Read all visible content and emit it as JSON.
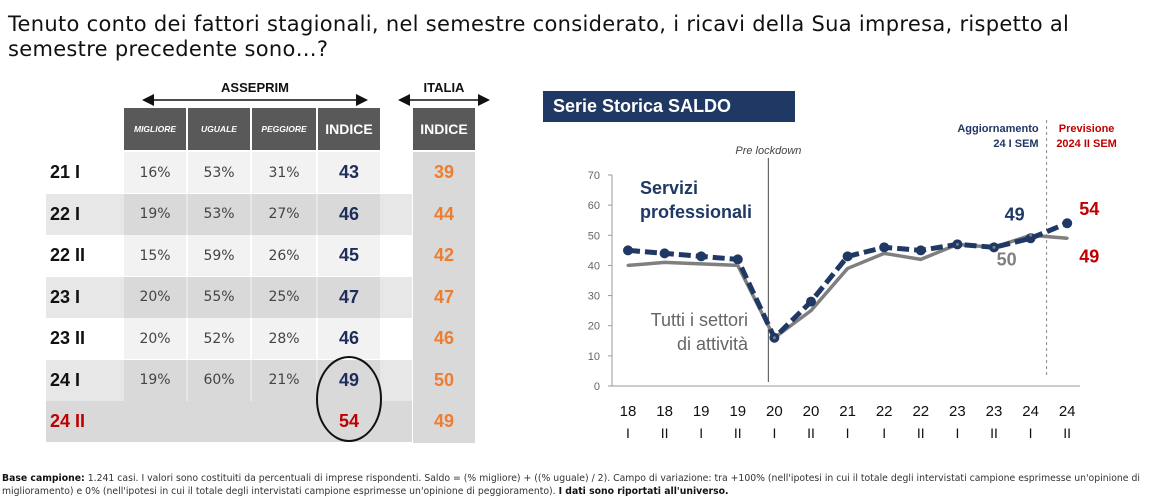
{
  "question": "Tenuto conto dei fattori stagionali, nel semestre considerato, i ricavi della Sua impresa, rispetto al semestre precedente sono…?",
  "table": {
    "group_asseprim": "ASSEPRIM",
    "group_italia": "ITALIA",
    "columns": [
      "MIGLIORE",
      "UGUALE",
      "PEGGIORE",
      "INDICE"
    ],
    "italia_column": "INDICE",
    "rows": [
      {
        "label": "21 I",
        "migliore": "16%",
        "uguale": "53%",
        "peggiore": "31%",
        "indice": "43",
        "italia": "39"
      },
      {
        "label": "22 I",
        "migliore": "19%",
        "uguale": "53%",
        "peggiore": "27%",
        "indice": "46",
        "italia": "44"
      },
      {
        "label": "22 II",
        "migliore": "15%",
        "uguale": "59%",
        "peggiore": "26%",
        "indice": "45",
        "italia": "42"
      },
      {
        "label": "23 I",
        "migliore": "20%",
        "uguale": "55%",
        "peggiore": "25%",
        "indice": "47",
        "italia": "47"
      },
      {
        "label": "23 II",
        "migliore": "20%",
        "uguale": "52%",
        "peggiore": "28%",
        "indice": "46",
        "italia": "46"
      },
      {
        "label": "24 I",
        "migliore": "19%",
        "uguale": "60%",
        "peggiore": "21%",
        "indice": "49",
        "italia": "50"
      },
      {
        "label": "24 II",
        "migliore": "",
        "uguale": "",
        "peggiore": "",
        "indice": "54",
        "italia": "49"
      }
    ],
    "colors": {
      "header_bg": "#595959",
      "band_dark": "#d9d9d9",
      "band_light": "#f2f2f2",
      "indice": "#1f2d5a",
      "italia": "#ed7d31",
      "forecast": "#c00000"
    }
  },
  "chart_title": "Serie Storica SALDO",
  "chart_data": {
    "type": "line",
    "x": [
      "18 I",
      "18 II",
      "19 I",
      "19 II",
      "20 I",
      "20 II",
      "21 I",
      "22 I",
      "22 II",
      "23 I",
      "23 II",
      "24 I",
      "24 II"
    ],
    "x_top": [
      "18",
      "18",
      "19",
      "19",
      "20",
      "20",
      "21",
      "22",
      "22",
      "23",
      "23",
      "24",
      "24"
    ],
    "x_bottom": [
      "I",
      "II",
      "I",
      "II",
      "I",
      "II",
      "I",
      "I",
      "II",
      "I",
      "II",
      "I",
      "II"
    ],
    "ylim": [
      0,
      70
    ],
    "yticks": [
      "0",
      "10",
      "20",
      "30",
      "40",
      "50",
      "60",
      "70"
    ],
    "series": [
      {
        "name": "Servizi professionali",
        "values": [
          45,
          44,
          43,
          42,
          16,
          28,
          43,
          46,
          45,
          47,
          46,
          49,
          54
        ],
        "color": "#1f3864",
        "style": "dashed"
      },
      {
        "name": "Tutti i settori di attività",
        "values": [
          40,
          41,
          40.5,
          40,
          16,
          25,
          39,
          44,
          42,
          47,
          46,
          50,
          49
        ],
        "color": "#7f7f7f",
        "style": "solid"
      }
    ],
    "annotations": {
      "pre_lockdown": "Pre lockdown",
      "aggiornamento": [
        "Aggiornamento",
        "24 I SEM"
      ],
      "previsione": [
        "Previsione",
        "2024 II SEM"
      ],
      "label_servizi_49": "49",
      "label_servizi_54": "54",
      "label_tutti_50": "50",
      "label_tutti_49": "49"
    },
    "series_labels": {
      "servizi": [
        "Servizi",
        "professionali"
      ],
      "tutti": [
        "Tutti i settori",
        "di attività"
      ]
    }
  },
  "footer": {
    "label": "Base campione:",
    "text": " 1.241 casi. I valori sono costituiti da percentuali di imprese rispondenti. Saldo = (% migliore) + ((% uguale) / 2). Campo di variazione: tra +100% (nell'ipotesi in cui il totale degli intervistati campione esprimesse un'opinione di miglioramento) e 0% (nell'ipotesi in cui il totale degli intervistati campione esprimesse un'opinione di peggioramento). ",
    "bold_end": "I dati sono riportati all'universo."
  }
}
